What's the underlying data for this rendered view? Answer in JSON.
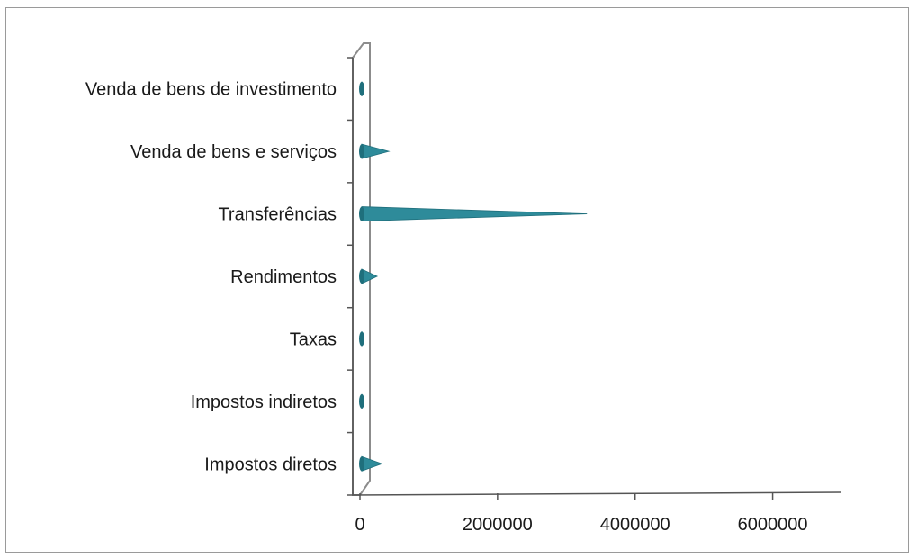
{
  "chart_data": {
    "type": "bar",
    "orientation": "horizontal",
    "style": "3d-cone",
    "categories": [
      "Impostos diretos",
      "Impostos indiretos",
      "Taxas",
      "Rendimentos",
      "Transferências",
      "Venda de bens e serviços",
      "Venda de bens de investimento"
    ],
    "values": [
      320000,
      60000,
      60000,
      250000,
      3300000,
      420000,
      40000
    ],
    "xlim": [
      0,
      7000000
    ],
    "xticks": [
      0,
      2000000,
      4000000,
      6000000
    ],
    "xtick_labels": [
      "0",
      "2000000",
      "4000000",
      "6000000"
    ],
    "title": "",
    "xlabel": "",
    "ylabel": "",
    "grid": false,
    "legend": "none",
    "colors": {
      "bar": "#2e8b9a",
      "bar_dark": "#1f6f7c",
      "axis": "#555555",
      "wall": "#8c8c8c",
      "frame": "#9a9a9a"
    }
  }
}
